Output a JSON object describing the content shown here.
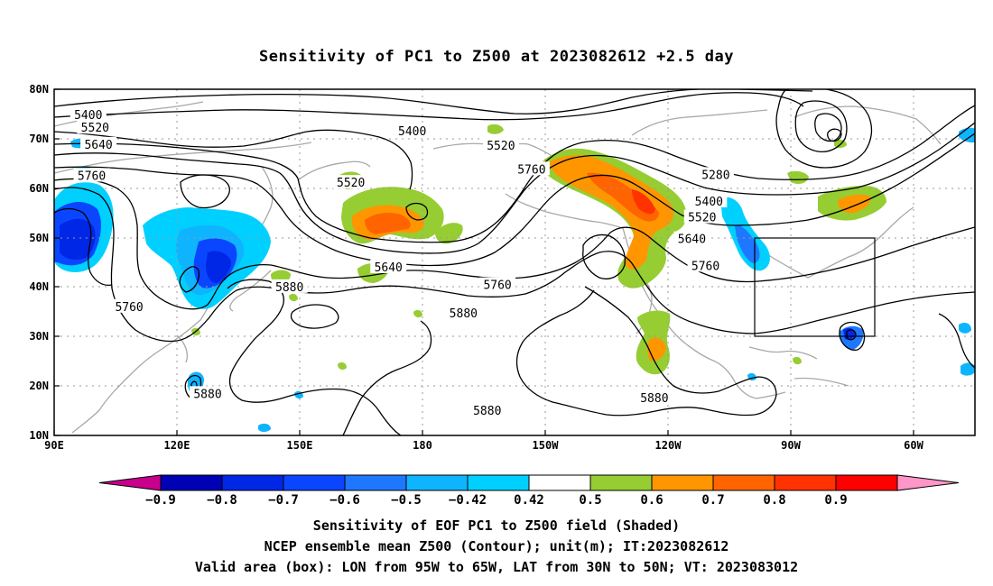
{
  "title": "Sensitivity of PC1 to Z500 at 2023082612 +2.5 day",
  "lat_labels": [
    "80N",
    "70N",
    "60N",
    "50N",
    "40N",
    "30N",
    "20N",
    "10N"
  ],
  "lon_labels": [
    "90E",
    "120E",
    "150E",
    "180",
    "150W",
    "120W",
    "90W",
    "60W"
  ],
  "contour_labels": [
    {
      "text": "5400",
      "lon": 100,
      "lat": 74.9
    },
    {
      "text": "5520",
      "lon": 102,
      "lat": 72.3
    },
    {
      "text": "5640",
      "lon": 103,
      "lat": 68.9
    },
    {
      "text": "5760",
      "lon": 101,
      "lat": 62.6
    },
    {
      "text": "5400",
      "lon": 195,
      "lat": 71.6
    },
    {
      "text": "5520",
      "lon": 177,
      "lat": 61.2
    },
    {
      "text": "5640",
      "lon": 188,
      "lat": 44.1
    },
    {
      "text": "5880",
      "lon": 159,
      "lat": 40.1
    },
    {
      "text": "5760",
      "lon": 112,
      "lat": 36.1
    },
    {
      "text": "5880",
      "lon": 135,
      "lat": 18.5
    },
    {
      "text": "5520",
      "lon": 221,
      "lat": 68.7
    },
    {
      "text": "5760",
      "lon": 230,
      "lat": 63.9
    },
    {
      "text": "5760",
      "lon": 220,
      "lat": 40.5
    },
    {
      "text": "5880",
      "lon": 210,
      "lat": 34.8
    },
    {
      "text": "5880",
      "lon": 217,
      "lat": 15.1
    },
    {
      "text": "5880",
      "lon": 266,
      "lat": 17.7
    },
    {
      "text": "5280",
      "lon": 284,
      "lat": 62.8
    },
    {
      "text": "5400",
      "lon": 282,
      "lat": 57.4
    },
    {
      "text": "5520",
      "lon": 280,
      "lat": 54.2
    },
    {
      "text": "5640",
      "lon": 277,
      "lat": 49.8
    },
    {
      "text": "5760",
      "lon": 281,
      "lat": 44.4
    }
  ],
  "colorbar": {
    "colors": [
      "#c8008c",
      "#0000b4",
      "#0026e6",
      "#0a46ff",
      "#1e78ff",
      "#0fb4ff",
      "#00d0ff",
      "#ffffff",
      "#96cd32",
      "#ff9600",
      "#ff6400",
      "#ff3200",
      "#ff0000",
      "#ff96c8"
    ],
    "labels": [
      "−0.9",
      "−0.8",
      "−0.7",
      "−0.6",
      "−0.5",
      "−0.42",
      "0.42",
      "0.5",
      "0.6",
      "0.7",
      "0.8",
      "0.9"
    ]
  },
  "box": {
    "lon_min": 265,
    "lon_max": 295,
    "lat_min": 30,
    "lat_max": 50
  },
  "caption": {
    "line1": "Sensitivity of EOF PC1 to Z500 field (Shaded)",
    "line2": "NCEP ensemble mean Z500 (Contour); unit(m); IT:2023082612",
    "line3": "Valid area (box): LON from 95W to 65W, LAT from 30N to 50N; VT: 2023083012"
  }
}
